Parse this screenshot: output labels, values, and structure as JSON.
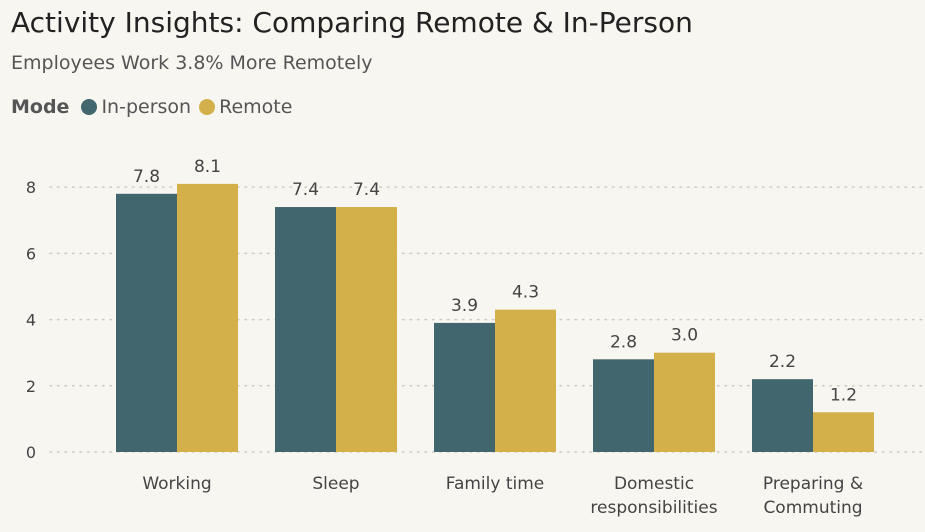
{
  "chart_data": {
    "type": "bar",
    "title": "Activity Insights: Comparing Remote & In-Person",
    "subtitle": "Employees Work 3.8% More Remotely",
    "legend_title": "Mode",
    "legend_position": "top-left",
    "categories": [
      [
        "Working"
      ],
      [
        "Sleep"
      ],
      [
        "Family time"
      ],
      [
        "Domestic",
        "responsibilities"
      ],
      [
        "Preparing &",
        "Commuting"
      ]
    ],
    "series": [
      {
        "name": "In-person",
        "color": "#41666e",
        "values": [
          7.8,
          7.4,
          3.9,
          2.8,
          2.2
        ],
        "labels": [
          "7.8",
          "7.4",
          "3.9",
          "2.8",
          "2.2"
        ]
      },
      {
        "name": "Remote",
        "color": "#d3b04a",
        "values": [
          8.1,
          7.4,
          4.3,
          3.0,
          1.2
        ],
        "labels": [
          "8.1",
          "7.4",
          "4.3",
          "3.0",
          "1.2"
        ]
      }
    ],
    "yticks": [
      "0",
      "2",
      "4",
      "6",
      "8"
    ],
    "ylim": [
      0,
      8.7
    ],
    "grid": "horizontal-dotted"
  }
}
